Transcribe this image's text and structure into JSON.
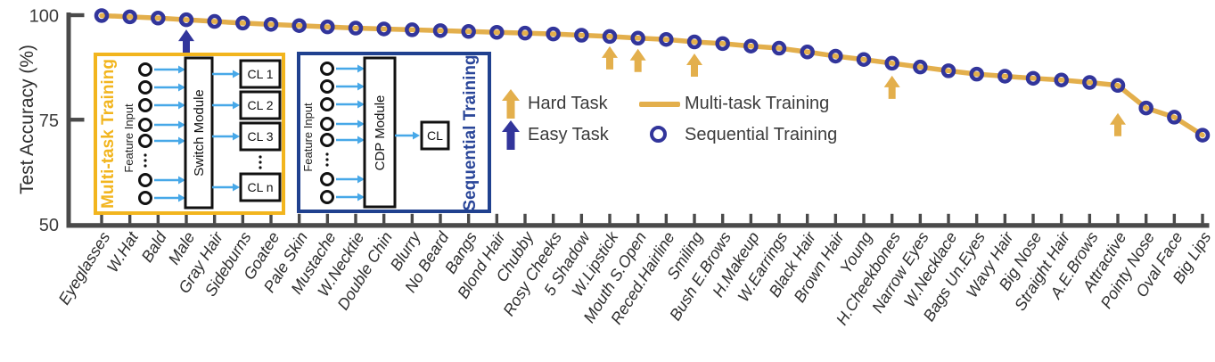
{
  "figure": {
    "y_axis": {
      "title": "Test Accuracy (%)"
    },
    "legend": {
      "hard_task": "Hard Task",
      "easy_task": "Easy Task",
      "multitask": "Multi-task Training",
      "sequential": "Sequential Training"
    },
    "insets": {
      "multitask": {
        "title": "Multi-task Training",
        "input_label": "Feature Input",
        "module_label": "Switch Module",
        "outputs": [
          "CL 1",
          "CL 2",
          "CL 3",
          "CL n"
        ]
      },
      "sequential": {
        "title": "Sequential Training",
        "input_label": "Feature Input",
        "module_label": "CDP Module",
        "output": "CL"
      }
    },
    "colors": {
      "gold": "#E3AF4C",
      "inset_gold": "#F2B51E",
      "navy": "#32359B",
      "inset_navy": "#20418F",
      "light_blue": "#47A8E8",
      "axis": "#4A4A4A"
    }
  },
  "chart_data": {
    "type": "line",
    "title": "",
    "xlabel": "",
    "ylabel": "Test Accuracy (%)",
    "ylim": [
      50,
      100
    ],
    "yticks": [
      100,
      75,
      50
    ],
    "grid": false,
    "legend_position": "upper-right-inside",
    "categories": [
      "Eyeglasses",
      "W.Hat",
      "Bald",
      "Male",
      "Gray Hair",
      "Sideburns",
      "Goatee",
      "Pale Skin",
      "Mustache",
      "W.Necktie",
      "Double Chin",
      "Blurry",
      "No Beard",
      "Bangs",
      "Blond Hair",
      "Chubby",
      "Rosy Cheeks",
      "5 Shadow",
      "W.Lipstick",
      "Mouth S.Open",
      "Reced.Hairline",
      "Smiling",
      "Bush E.Brows",
      "H.Makeup",
      "W.Earrings",
      "Black Hair",
      "Brown Hair",
      "Young",
      "H.Cheekbones",
      "Narrow Eyes",
      "W.Necklace",
      "Bags Un.Eyes",
      "Wavy Hair",
      "Big Nose",
      "Straight Hair",
      "A.E.Brows",
      "Attractive",
      "Pointy Nose",
      "Oval Face",
      "Big Lips"
    ],
    "series": [
      {
        "name": "Multi-task Training",
        "style": "gold-line",
        "values": [
          99.9,
          99.6,
          99.3,
          98.9,
          98.5,
          98.1,
          97.8,
          97.5,
          97.2,
          96.9,
          96.7,
          96.5,
          96.3,
          96.1,
          95.9,
          95.7,
          95.5,
          95.2,
          94.9,
          94.5,
          94.2,
          93.6,
          93.2,
          92.6,
          92.1,
          91.2,
          90.2,
          89.4,
          88.5,
          87.6,
          86.7,
          85.9,
          85.4,
          84.9,
          84.5,
          83.9,
          83.2,
          77.8,
          75.6,
          71.3
        ]
      },
      {
        "name": "Sequential Training",
        "style": "navy-open-circle",
        "values": [
          99.9,
          99.6,
          99.3,
          98.9,
          98.5,
          98.1,
          97.8,
          97.5,
          97.2,
          96.9,
          96.7,
          96.5,
          96.3,
          96.1,
          95.9,
          95.7,
          95.5,
          95.2,
          94.9,
          94.5,
          94.2,
          93.6,
          93.2,
          92.6,
          92.1,
          91.2,
          90.2,
          89.4,
          88.5,
          87.6,
          86.7,
          85.9,
          85.4,
          84.9,
          84.5,
          83.9,
          83.2,
          77.8,
          75.6,
          71.3
        ]
      }
    ],
    "annotations": {
      "easy_tasks": [
        {
          "category": "Male",
          "dy": 11
        }
      ],
      "hard_tasks": [
        {
          "category": "W.Lipstick",
          "dy": 11
        },
        {
          "category": "Mouth S.Open",
          "dy": 12
        },
        {
          "category": "Smiling",
          "dy": 13
        },
        {
          "category": "H.Cheekbones",
          "dy": 14
        },
        {
          "category": "Attractive",
          "dy": 31
        }
      ]
    }
  }
}
